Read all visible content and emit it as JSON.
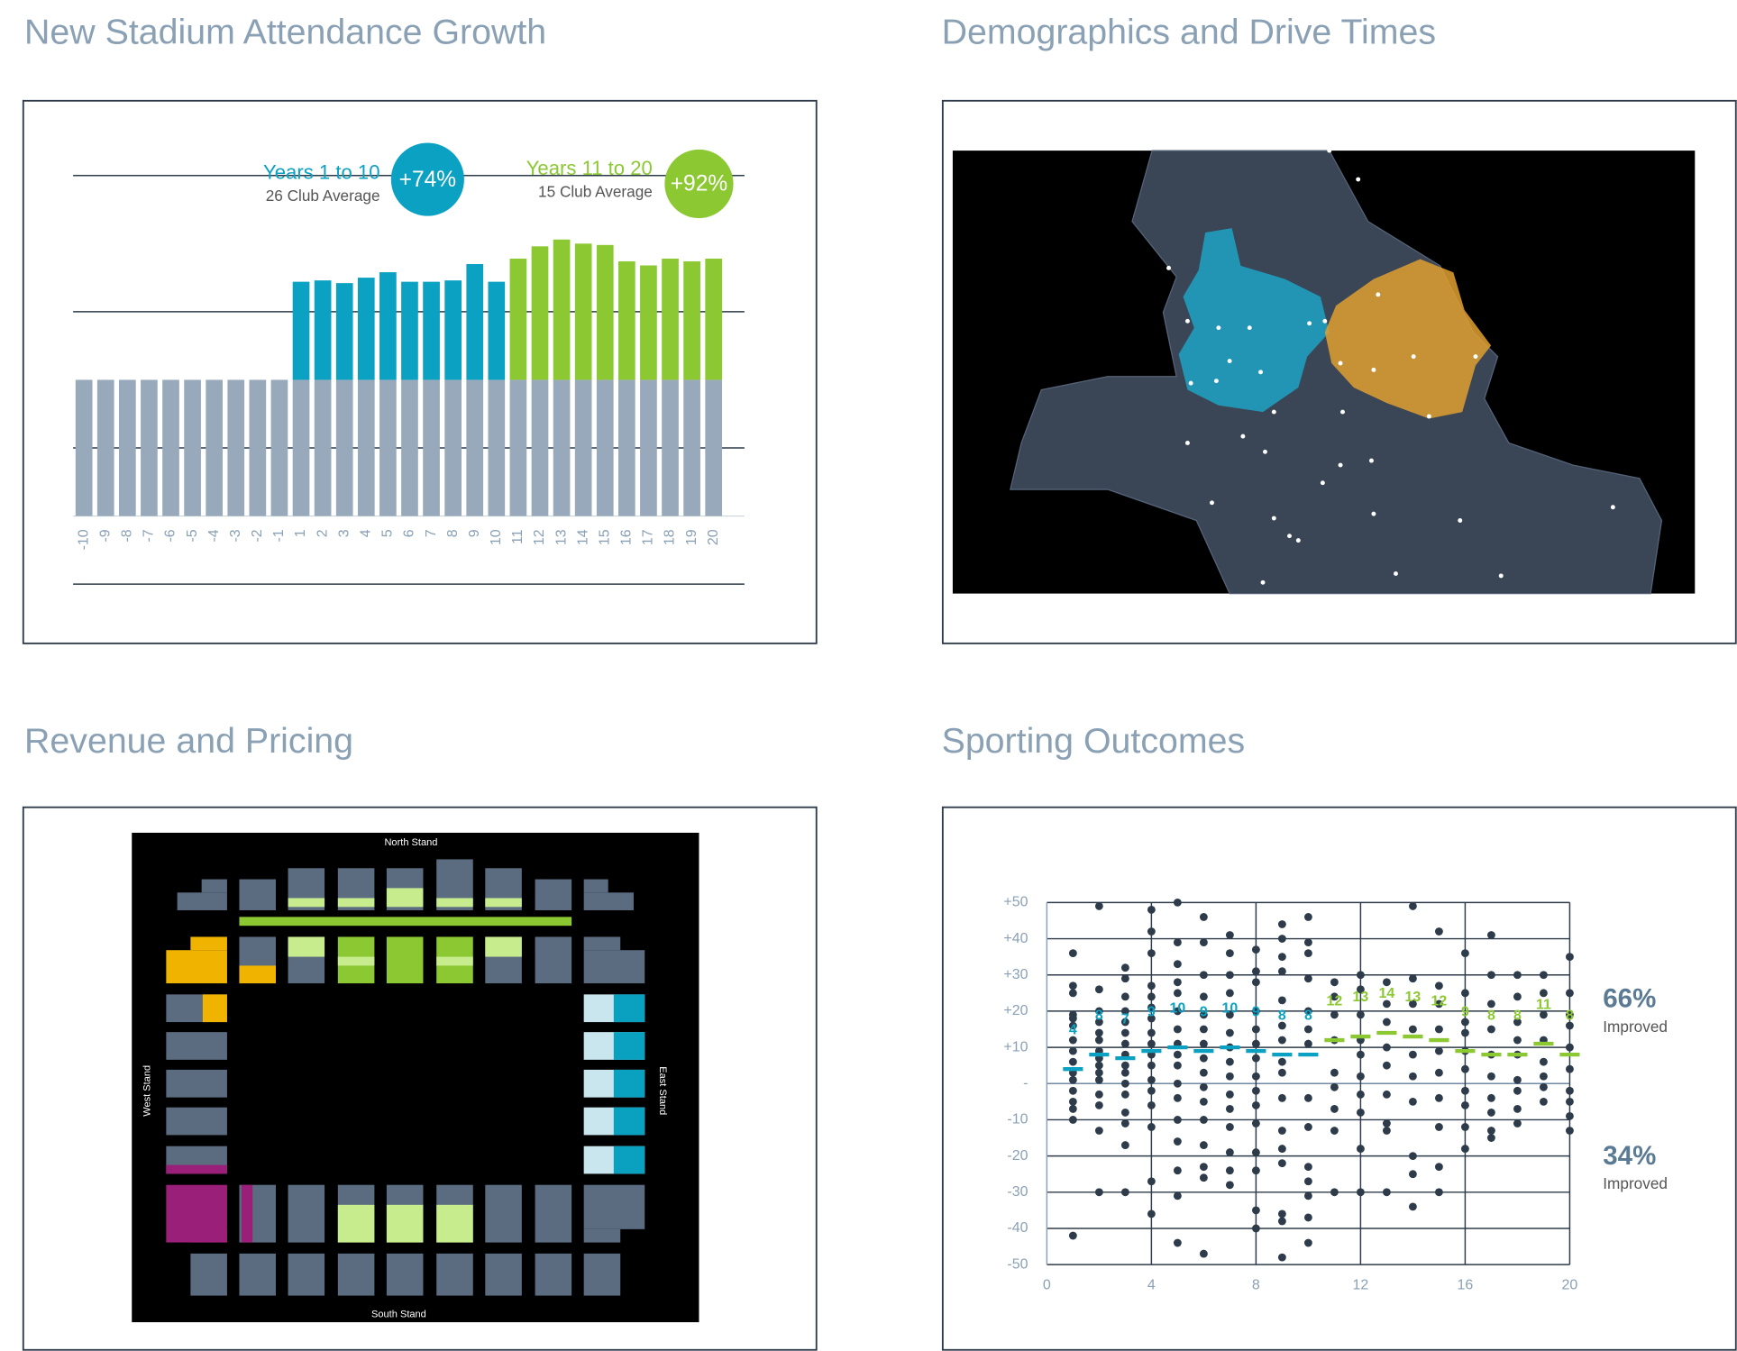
{
  "panels": [
    {
      "title": "New Stadium Attendance Growth"
    },
    {
      "title": "Demographics and Drive Times"
    },
    {
      "title": "Revenue and Pricing"
    },
    {
      "title": "Sporting Outcomes"
    }
  ],
  "stadium": {
    "north": "North Stand",
    "south": "South Stand",
    "west": "West Stand",
    "east": "East Stand"
  },
  "chart_data": [
    {
      "type": "bar",
      "stacked": true,
      "categories": [
        -10,
        -9,
        -8,
        -7,
        -6,
        -5,
        -4,
        -3,
        -2,
        -1,
        1,
        2,
        3,
        4,
        5,
        6,
        7,
        8,
        9,
        10,
        11,
        12,
        13,
        14,
        15,
        16,
        17,
        18,
        19,
        20
      ],
      "series": [
        {
          "color": "#97a9ba",
          "values": [
            100,
            100,
            100,
            100,
            100,
            100,
            100,
            100,
            100,
            100,
            100,
            100,
            100,
            100,
            100,
            100,
            100,
            100,
            100,
            100,
            100,
            100,
            100,
            100,
            100,
            100,
            100,
            100,
            100,
            100
          ]
        },
        {
          "name": "Years 1 to 10",
          "note": "26 Club Average",
          "badge": "+74%",
          "color": "#0ba1c2",
          "values": [
            null,
            null,
            null,
            null,
            null,
            null,
            null,
            null,
            null,
            null,
            72,
            73,
            71,
            75,
            79,
            72,
            72,
            73,
            85,
            72,
            null,
            null,
            null,
            null,
            null,
            null,
            null,
            null,
            null,
            null
          ]
        },
        {
          "name": "Years 11 to 20",
          "note": "15 Club Average",
          "badge": "+92%",
          "color": "#8bc832",
          "values": [
            null,
            null,
            null,
            null,
            null,
            null,
            null,
            null,
            null,
            null,
            null,
            null,
            null,
            null,
            null,
            null,
            null,
            null,
            null,
            null,
            89,
            98,
            103,
            100,
            99,
            87,
            84,
            89,
            87,
            89
          ]
        }
      ],
      "ylim": [
        -50,
        250
      ],
      "yticks": [
        -50,
        50,
        150,
        250
      ],
      "grid": true
    },
    {
      "type": "scatter",
      "color": "#2d3b4a",
      "xlim": [
        0,
        20
      ],
      "xticks": [
        0,
        4,
        8,
        12,
        16,
        20
      ],
      "ylim": [
        -50,
        50
      ],
      "yticks": [
        {
          "value": 50,
          "label": "+50"
        },
        {
          "value": 40,
          "label": "+40"
        },
        {
          "value": 30,
          "label": "+30"
        },
        {
          "value": 20,
          "label": "+20"
        },
        {
          "value": 10,
          "label": "+10"
        },
        {
          "value": 0,
          "label": "-"
        },
        -10,
        -20,
        -30,
        -40,
        -50
      ],
      "grid": true,
      "columns": [
        {
          "x": 1,
          "mean": 4,
          "color": "#0ba1c2",
          "values": [
            36,
            27,
            25,
            19,
            18,
            16,
            12,
            9,
            6,
            3,
            1,
            -2,
            -5,
            -7,
            -10,
            -42
          ]
        },
        {
          "x": 2,
          "mean": 8,
          "color": "#0ba1c2",
          "values": [
            49,
            26,
            20,
            17,
            14,
            12,
            9,
            7,
            5,
            3,
            1,
            -3,
            -6,
            -13,
            -30
          ]
        },
        {
          "x": 3,
          "mean": 7,
          "color": "#0ba1c2",
          "values": [
            32,
            29,
            24,
            20,
            17,
            14,
            11,
            8,
            5,
            3,
            0,
            -3,
            -8,
            -11,
            -17,
            -30
          ]
        },
        {
          "x": 4,
          "mean": 9,
          "color": "#0ba1c2",
          "values": [
            48,
            42,
            36,
            27,
            24,
            21,
            18,
            14,
            11,
            8,
            5,
            1,
            -2,
            -6,
            -12,
            -27,
            -36
          ]
        },
        {
          "x": 5,
          "mean": 10,
          "color": "#0ba1c2",
          "values": [
            50,
            39,
            33,
            28,
            25,
            20,
            15,
            11,
            8,
            5,
            0,
            -4,
            -10,
            -16,
            -24,
            -31,
            -44
          ]
        },
        {
          "x": 6,
          "mean": 9,
          "color": "#0ba1c2",
          "values": [
            46,
            39,
            30,
            24,
            19,
            15,
            11,
            7,
            3,
            -1,
            -5,
            -10,
            -17,
            -23,
            -26,
            -47
          ]
        },
        {
          "x": 7,
          "mean": 10,
          "color": "#0ba1c2",
          "values": [
            41,
            36,
            30,
            25,
            19,
            14,
            10,
            6,
            2,
            -3,
            -7,
            -12,
            -19,
            -24,
            -28
          ]
        },
        {
          "x": 8,
          "mean": 9,
          "color": "#0ba1c2",
          "values": [
            37,
            31,
            28,
            20,
            15,
            11,
            7,
            2,
            -2,
            -6,
            -11,
            -19,
            -24,
            -35,
            -40
          ]
        },
        {
          "x": 9,
          "mean": 8,
          "color": "#0ba1c2",
          "values": [
            44,
            40,
            35,
            31,
            23,
            16,
            12,
            6,
            3,
            -4,
            -13,
            -18,
            -22,
            -36,
            -38,
            -48
          ]
        },
        {
          "x": 10,
          "mean": 8,
          "color": "#0ba1c2",
          "values": [
            46,
            39,
            36,
            29,
            20,
            15,
            11,
            -4,
            -12,
            -23,
            -27,
            -31,
            -37,
            -44
          ]
        },
        {
          "x": 11,
          "mean": 12,
          "color": "#8bc832",
          "values": [
            28,
            24,
            19,
            12,
            3,
            -1,
            -7,
            -13,
            -30
          ]
        },
        {
          "x": 12,
          "mean": 13,
          "color": "#8bc832",
          "values": [
            30,
            26,
            19,
            12,
            8,
            2,
            -3,
            -8,
            -18,
            -30
          ]
        },
        {
          "x": 13,
          "mean": 14,
          "color": "#8bc832",
          "values": [
            28,
            22,
            17,
            10,
            5,
            -3,
            -11,
            -13,
            -30
          ]
        },
        {
          "x": 14,
          "mean": 13,
          "color": "#8bc832",
          "values": [
            49,
            29,
            22,
            15,
            8,
            2,
            -5,
            -20,
            -25,
            -34
          ]
        },
        {
          "x": 15,
          "mean": 12,
          "color": "#8bc832",
          "values": [
            42,
            27,
            22,
            15,
            9,
            3,
            -4,
            -12,
            -23,
            -30
          ]
        },
        {
          "x": 16,
          "mean": 9,
          "color": "#8bc832",
          "values": [
            36,
            25,
            17,
            14,
            9,
            4,
            -2,
            -6,
            -12,
            -18
          ]
        },
        {
          "x": 17,
          "mean": 8,
          "color": "#8bc832",
          "values": [
            41,
            30,
            22,
            15,
            8,
            2,
            -4,
            -8,
            -13,
            -15
          ]
        },
        {
          "x": 18,
          "mean": 8,
          "color": "#8bc832",
          "values": [
            30,
            24,
            17,
            12,
            8,
            1,
            -2,
            -7,
            -11
          ]
        },
        {
          "x": 19,
          "mean": 11,
          "color": "#8bc832",
          "values": [
            30,
            25,
            19,
            12,
            6,
            2,
            -1,
            -5
          ]
        },
        {
          "x": 20,
          "mean": 8,
          "color": "#8bc832",
          "values": [
            35,
            25,
            19,
            16,
            10,
            4,
            -2,
            -5,
            -9,
            -13
          ]
        }
      ],
      "annotations": [
        {
          "text": "66%",
          "note": "Improved"
        },
        {
          "text": "34%",
          "note": "Improved"
        }
      ]
    }
  ]
}
